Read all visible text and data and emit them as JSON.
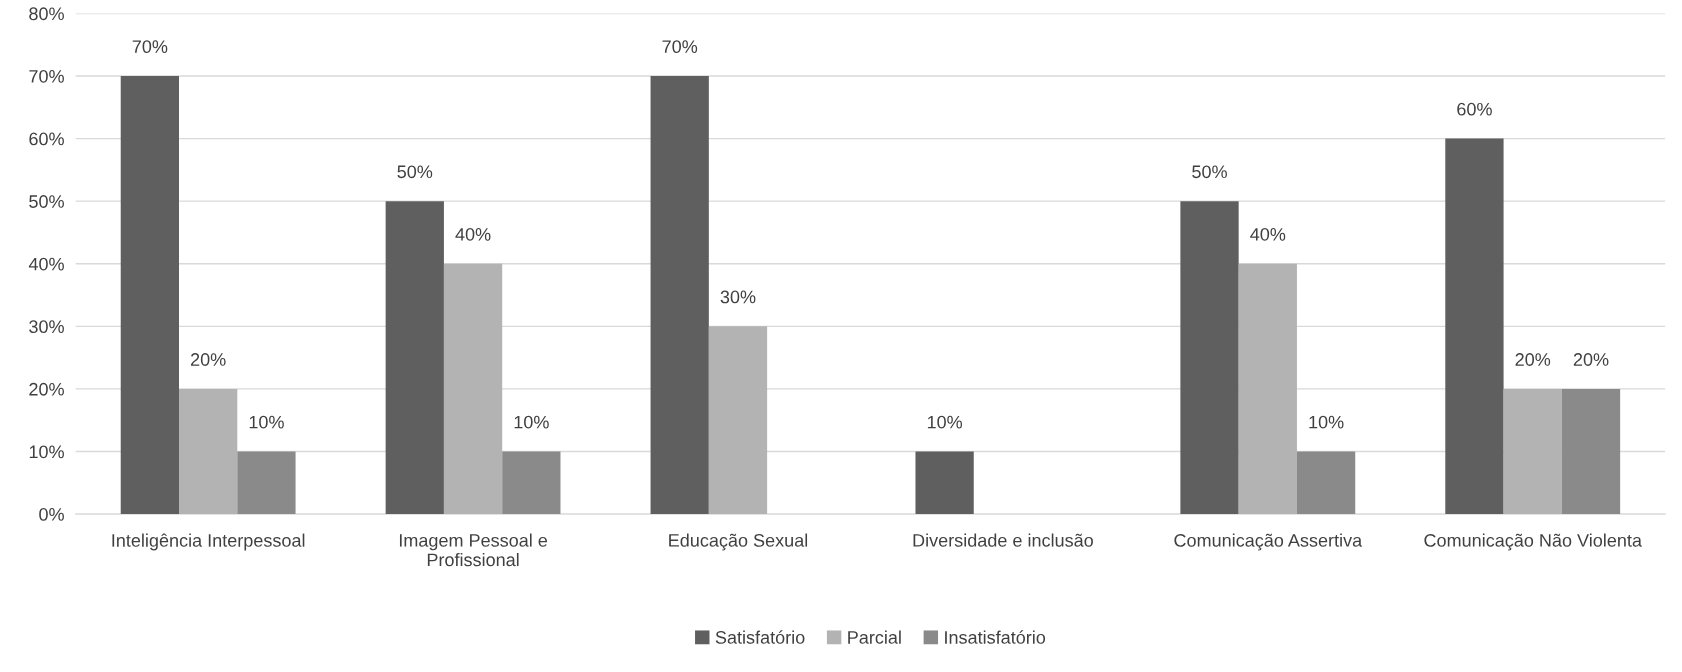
{
  "chart_data": {
    "type": "bar",
    "categories": [
      "Inteligência Interpessoal",
      "Imagem Pessoal e\nProfissional",
      "Educação Sexual",
      "Diversidade e inclusão",
      "Comunicação Assertiva",
      "Comunicação Não Violenta"
    ],
    "series": [
      {
        "name": "Satisfatório",
        "color": "#5f5f5f",
        "values": [
          70,
          50,
          70,
          10,
          50,
          60
        ],
        "value_labels": [
          "70%",
          "50%",
          "70%",
          "10%",
          "50%",
          "60%"
        ]
      },
      {
        "name": "Parcial",
        "color": "#b3b3b3",
        "values": [
          20,
          40,
          30,
          null,
          40,
          20
        ],
        "value_labels": [
          "20%",
          "40%",
          "30%",
          null,
          "40%",
          "20%"
        ]
      },
      {
        "name": "Insatisfatório",
        "color": "#8a8a8a",
        "values": [
          10,
          10,
          null,
          null,
          10,
          20
        ],
        "value_labels": [
          "10%",
          "10%",
          null,
          null,
          "10%",
          "20%"
        ]
      }
    ],
    "ylim": [
      0,
      80
    ],
    "yticks": [
      {
        "value": 0,
        "label": "0%"
      },
      {
        "value": 10,
        "label": "10%"
      },
      {
        "value": 20,
        "label": "20%"
      },
      {
        "value": 30,
        "label": "30%"
      },
      {
        "value": 40,
        "label": "40%"
      },
      {
        "value": 50,
        "label": "50%"
      },
      {
        "value": 60,
        "label": "60%"
      },
      {
        "value": 70,
        "label": "70%"
      },
      {
        "value": 80,
        "label": "80%"
      }
    ],
    "grid": "y",
    "legend": "bottom"
  }
}
